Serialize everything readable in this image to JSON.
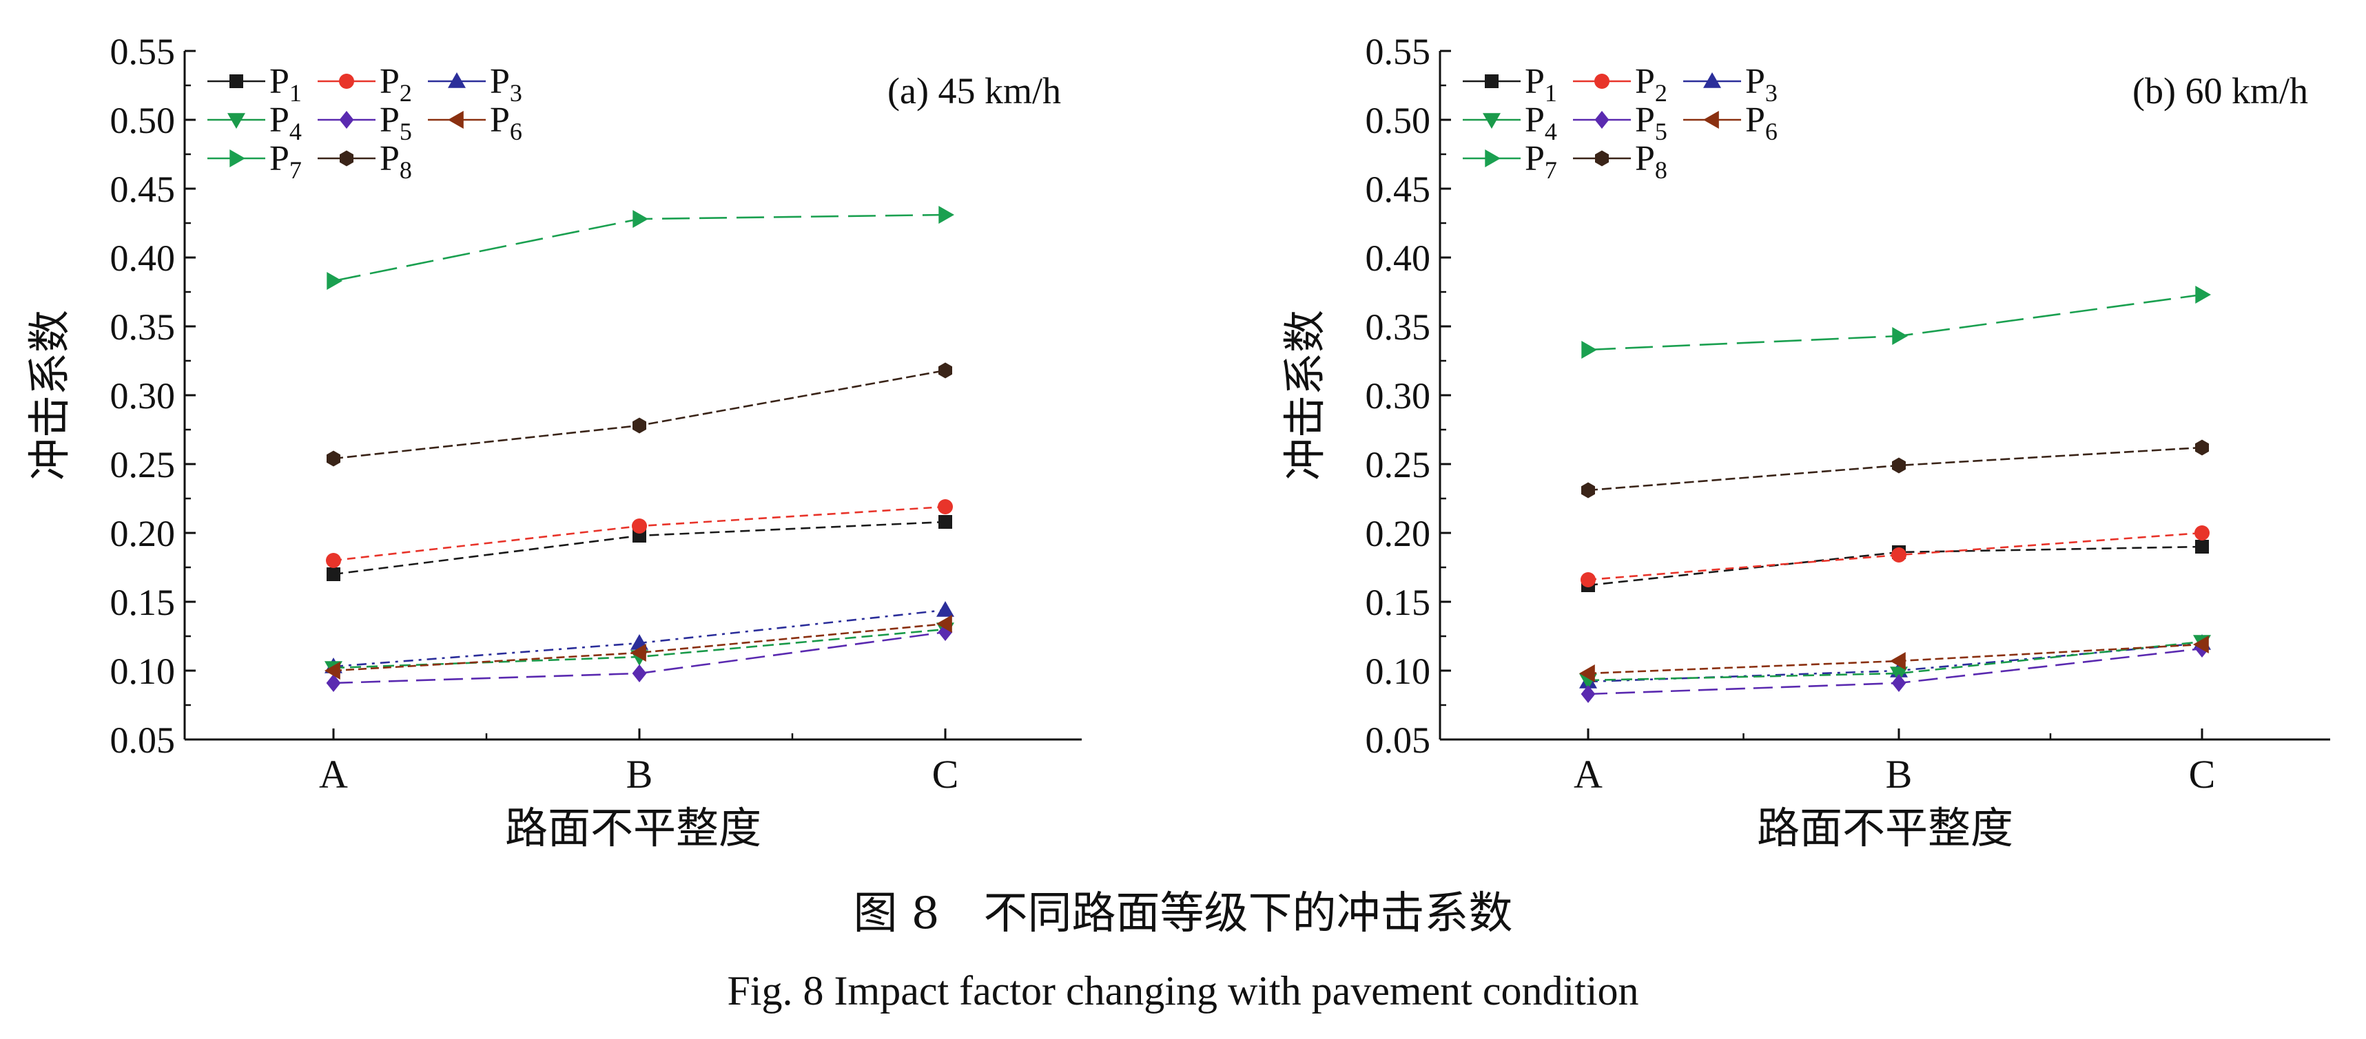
{
  "caption": {
    "cn": "图 8　不同路面等级下的冲击系数",
    "en": "Fig. 8  Impact factor changing with pavement condition"
  },
  "chart_data": [
    {
      "type": "line",
      "title": "(a) 45 km/h",
      "xlabel": "路面不平整度",
      "ylabel": "冲击系数",
      "categories": [
        "A",
        "B",
        "C"
      ],
      "ylim": [
        0.05,
        0.55
      ],
      "yticks": [
        0.05,
        0.1,
        0.15,
        0.2,
        0.25,
        0.3,
        0.35,
        0.4,
        0.45,
        0.5,
        0.55
      ],
      "grid": false,
      "legend_position": "top-left",
      "series": [
        {
          "name": "P",
          "sub": "1",
          "marker": "square",
          "color": "#1a1a1a",
          "values": [
            0.17,
            0.198,
            0.208
          ]
        },
        {
          "name": "P",
          "sub": "2",
          "marker": "circle",
          "color": "#e8342a",
          "values": [
            0.18,
            0.205,
            0.219
          ]
        },
        {
          "name": "P",
          "sub": "3",
          "marker": "triangle-up",
          "color": "#2b2e9a",
          "values": [
            0.103,
            0.12,
            0.144
          ]
        },
        {
          "name": "P",
          "sub": "4",
          "marker": "triangle-down",
          "color": "#1a9a4a",
          "values": [
            0.102,
            0.11,
            0.13
          ]
        },
        {
          "name": "P",
          "sub": "5",
          "marker": "diamond",
          "color": "#5a2ab0",
          "values": [
            0.091,
            0.098,
            0.128
          ]
        },
        {
          "name": "P",
          "sub": "6",
          "marker": "triangle-left",
          "color": "#8a3010",
          "values": [
            0.1,
            0.113,
            0.134
          ]
        },
        {
          "name": "P",
          "sub": "7",
          "marker": "triangle-right",
          "color": "#1aa050",
          "values": [
            0.383,
            0.428,
            0.431
          ]
        },
        {
          "name": "P",
          "sub": "8",
          "marker": "hexagon",
          "color": "#3a2418",
          "values": [
            0.254,
            0.278,
            0.318
          ]
        }
      ]
    },
    {
      "type": "line",
      "title": "(b) 60 km/h",
      "xlabel": "路面不平整度",
      "ylabel": "冲击系数",
      "categories": [
        "A",
        "B",
        "C"
      ],
      "ylim": [
        0.05,
        0.55
      ],
      "yticks": [
        0.05,
        0.1,
        0.15,
        0.2,
        0.25,
        0.3,
        0.35,
        0.4,
        0.45,
        0.5,
        0.55
      ],
      "grid": false,
      "legend_position": "top-left",
      "series": [
        {
          "name": "P",
          "sub": "1",
          "marker": "square",
          "color": "#1a1a1a",
          "values": [
            0.162,
            0.186,
            0.19
          ]
        },
        {
          "name": "P",
          "sub": "2",
          "marker": "circle",
          "color": "#e8342a",
          "values": [
            0.166,
            0.184,
            0.2
          ]
        },
        {
          "name": "P",
          "sub": "3",
          "marker": "triangle-up",
          "color": "#2b2e9a",
          "values": [
            0.092,
            0.1,
            0.12
          ]
        },
        {
          "name": "P",
          "sub": "4",
          "marker": "triangle-down",
          "color": "#1a9a4a",
          "values": [
            0.093,
            0.098,
            0.121
          ]
        },
        {
          "name": "P",
          "sub": "5",
          "marker": "diamond",
          "color": "#5a2ab0",
          "values": [
            0.083,
            0.091,
            0.116
          ]
        },
        {
          "name": "P",
          "sub": "6",
          "marker": "triangle-left",
          "color": "#8a3010",
          "values": [
            0.098,
            0.107,
            0.119
          ]
        },
        {
          "name": "P",
          "sub": "7",
          "marker": "triangle-right",
          "color": "#1aa050",
          "values": [
            0.333,
            0.343,
            0.373
          ]
        },
        {
          "name": "P",
          "sub": "8",
          "marker": "hexagon",
          "color": "#3a2418",
          "values": [
            0.231,
            0.249,
            0.262
          ]
        }
      ]
    }
  ]
}
